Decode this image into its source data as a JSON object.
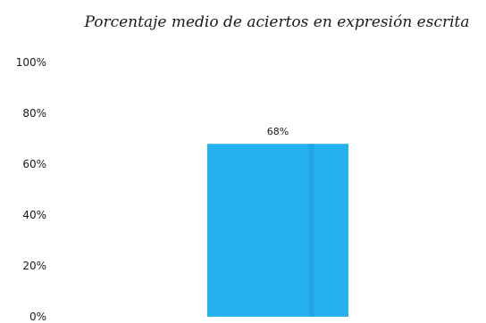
{
  "chart_data": {
    "type": "bar",
    "title": "Porcentaje medio de aciertos en expresión escrita",
    "categories": [
      ""
    ],
    "values": [
      68
    ],
    "data_labels": [
      "68%"
    ],
    "y_ticks": [
      "0%",
      "20%",
      "40%",
      "60%",
      "80%",
      "100%"
    ],
    "ylim": [
      0,
      100
    ],
    "xlabel": "",
    "ylabel": "",
    "grid": false,
    "legend": "none",
    "bar_color": "#25b0ef",
    "bar_stripe_color": "#1f9fdc"
  }
}
